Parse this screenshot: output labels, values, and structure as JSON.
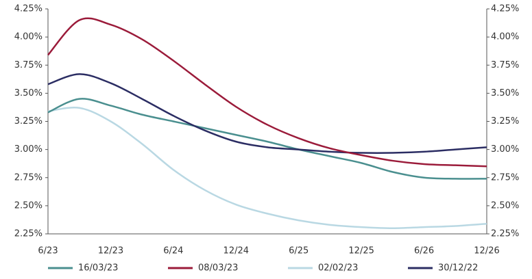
{
  "chart_data": {
    "type": "line",
    "categories": [
      "6/23",
      null,
      "12/23",
      null,
      "6/24",
      null,
      "12/24",
      null,
      "6/25",
      null,
      "12/25",
      null,
      "6/26",
      null,
      "12/26"
    ],
    "series": [
      {
        "name": "16/03/23",
        "color": "#4a8f8f",
        "values": [
          3.33,
          3.45,
          3.39,
          3.31,
          3.25,
          3.19,
          3.13,
          3.07,
          3.0,
          2.94,
          2.88,
          2.8,
          2.75,
          2.74,
          2.74
        ]
      },
      {
        "name": "08/03/23",
        "color": "#9b1b3a",
        "values": [
          3.84,
          4.15,
          4.11,
          3.98,
          3.79,
          3.58,
          3.38,
          3.22,
          3.1,
          3.01,
          2.95,
          2.9,
          2.87,
          2.86,
          2.85
        ]
      },
      {
        "name": "02/02/23",
        "color": "#b9d8e3",
        "values": [
          3.34,
          3.37,
          3.25,
          3.05,
          2.82,
          2.64,
          2.51,
          2.43,
          2.37,
          2.33,
          2.31,
          2.3,
          2.31,
          2.32,
          2.34
        ]
      },
      {
        "name": "30/12/22",
        "color": "#2b2d63",
        "values": [
          3.58,
          3.67,
          3.59,
          3.45,
          3.3,
          3.17,
          3.07,
          3.02,
          3.0,
          2.98,
          2.97,
          2.97,
          2.98,
          3.0,
          3.02
        ]
      }
    ],
    "ylim": [
      2.25,
      4.25
    ],
    "yticks": [
      {
        "value": 2.25,
        "label": "2.25%"
      },
      {
        "value": 2.5,
        "label": "2.50%"
      },
      {
        "value": 2.75,
        "label": "2.75%"
      },
      {
        "value": 3,
        "label": "3.00%"
      },
      {
        "value": 3.25,
        "label": "3.25%"
      },
      {
        "value": 3.5,
        "label": "3.50%"
      },
      {
        "value": 3.75,
        "label": "3.75%"
      },
      {
        "value": 4,
        "label": "4.00%"
      },
      {
        "value": 4.25,
        "label": "4.25%"
      }
    ],
    "legend": "bottom"
  }
}
